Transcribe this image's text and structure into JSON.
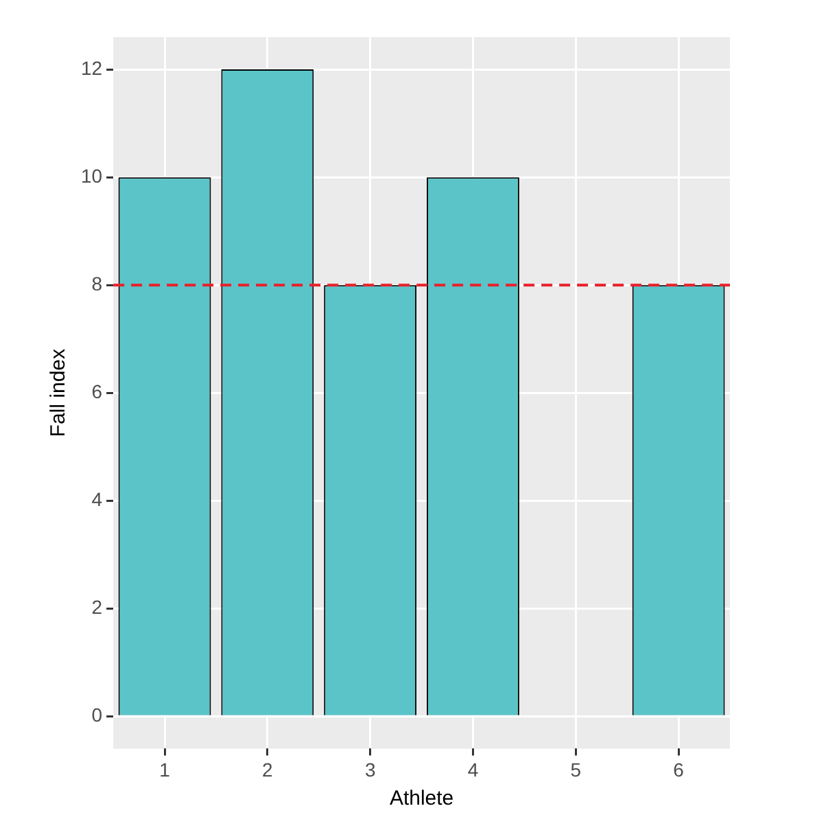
{
  "chart_data": {
    "type": "bar",
    "xlabel": "Athlete",
    "ylabel": "Fall index",
    "categories": [
      "1",
      "2",
      "3",
      "4",
      "5",
      "6"
    ],
    "values": [
      10,
      12,
      8,
      10,
      0,
      8
    ],
    "color": "#5bc4c9",
    "ylim": [
      -0.6,
      12.6
    ],
    "yticks": [
      0,
      2,
      4,
      6,
      8,
      10,
      12
    ],
    "grid": true,
    "legend": false,
    "ref_lines": [
      {
        "axis": "y",
        "value": 8,
        "color": "#e8202a",
        "line_style": "dashed"
      }
    ]
  }
}
